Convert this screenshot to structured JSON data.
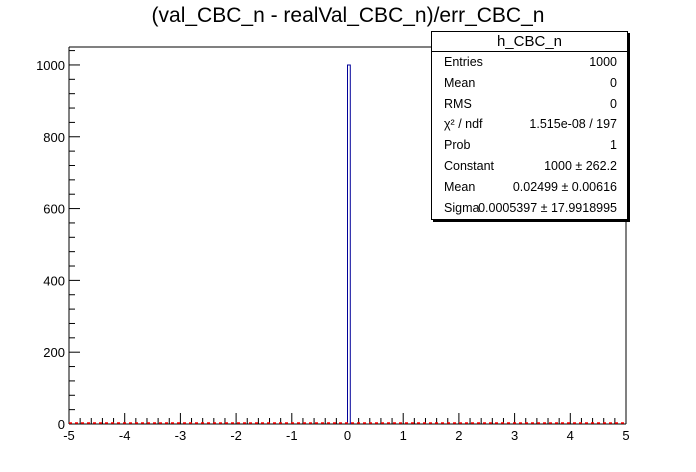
{
  "chart_data": {
    "type": "histogram",
    "title": "(val_CBC_n - realVal_CBC_n)/err_CBC_n",
    "xlim": [
      -5,
      5
    ],
    "ylim": [
      0,
      1050
    ],
    "x_ticks": [
      "-5",
      "-4",
      "-3",
      "-2",
      "-1",
      "0",
      "1",
      "2",
      "3",
      "4",
      "5"
    ],
    "y_ticks": [
      "0",
      "200",
      "400",
      "600",
      "800",
      "1000"
    ],
    "bins": [
      {
        "x_low": 0.0,
        "x_high": 0.05,
        "value": 1000
      }
    ],
    "fit": {
      "function": "gaus",
      "constant": 1000,
      "mean": 0.02499,
      "sigma": 0.0005397,
      "color": "#ff0000"
    },
    "colors": {
      "histogram": "#000099",
      "fit": "#ff0000",
      "axes": "#000000"
    },
    "stats": {
      "name": "h_CBC_n",
      "rows": [
        {
          "label": "Entries",
          "value": "1000"
        },
        {
          "label": "Mean",
          "value": "0"
        },
        {
          "label": "RMS",
          "value": "0"
        },
        {
          "label": "χ² / ndf",
          "value": "1.515e-08 / 197"
        },
        {
          "label": "Prob",
          "value": "1"
        },
        {
          "label": "Constant",
          "value": "1000 ± 262.2"
        },
        {
          "label": "Mean",
          "value": "0.02499 ± 0.00616"
        },
        {
          "label": "Sigma",
          "value": "0.0005397 ± 17.9918995"
        }
      ]
    }
  }
}
